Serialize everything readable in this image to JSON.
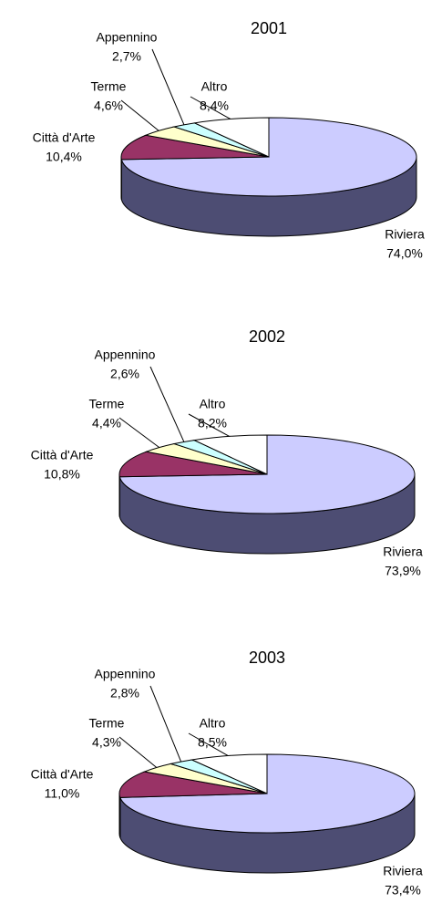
{
  "chart_data": [
    {
      "type": "pie",
      "title": "2001",
      "categories": [
        "Riviera",
        "Città d'Arte",
        "Terme",
        "Appennino",
        "Altro"
      ],
      "values": [
        74.0,
        10.4,
        4.6,
        2.7,
        8.4
      ],
      "value_labels": [
        "74,0%",
        "10,4%",
        "4,6%",
        "2,7%",
        "8,4%"
      ],
      "colors": [
        "#ccccff",
        "#993366",
        "#ffffcc",
        "#ccffff",
        "#ffffff"
      ]
    },
    {
      "type": "pie",
      "title": "2002",
      "categories": [
        "Riviera",
        "Città d'Arte",
        "Terme",
        "Appennino",
        "Altro"
      ],
      "values": [
        73.9,
        10.8,
        4.4,
        2.6,
        8.2
      ],
      "value_labels": [
        "73,9%",
        "10,8%",
        "4,4%",
        "2,6%",
        "8,2%"
      ],
      "colors": [
        "#ccccff",
        "#993366",
        "#ffffcc",
        "#ccffff",
        "#ffffff"
      ]
    },
    {
      "type": "pie",
      "title": "2003",
      "categories": [
        "Riviera",
        "Città d'Arte",
        "Terme",
        "Appennino",
        "Altro"
      ],
      "values": [
        73.4,
        11.0,
        4.3,
        2.8,
        8.5
      ],
      "value_labels": [
        "73,4%",
        "11,0%",
        "4,3%",
        "2,8%",
        "8,5%"
      ],
      "colors": [
        "#ccccff",
        "#993366",
        "#ffffcc",
        "#ccffff",
        "#ffffff"
      ]
    }
  ]
}
